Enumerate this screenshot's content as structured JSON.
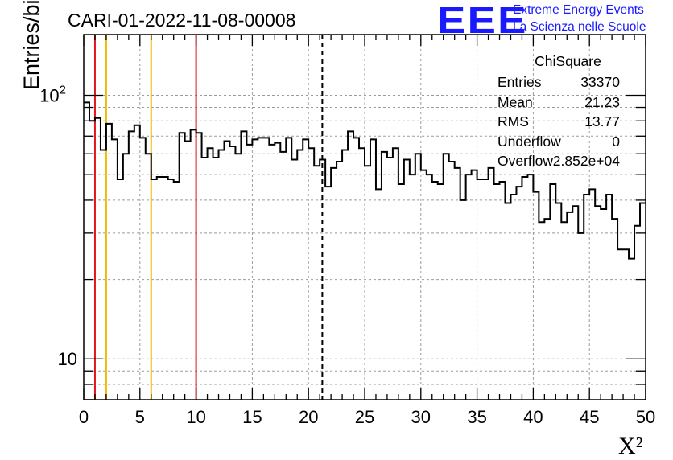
{
  "title": "CARI-01-2022-11-08-00008",
  "logo": {
    "mark": "EEE",
    "line1": "Extreme Energy Events",
    "line2": "La Scienza nelle Scuole",
    "color": "#1a1aff"
  },
  "stats_box": {
    "name": "ChiSquare",
    "entries_label": "Entries",
    "entries_value": "33370",
    "mean_label": "Mean",
    "mean_value": "21.23",
    "rms_label": "RMS",
    "rms_value": "13.77",
    "underflow_label": "Underflow",
    "underflow_value": "0",
    "overflow_label": "Overflow",
    "overflow_value": "2.852e+04"
  },
  "chart_data": {
    "type": "histogram",
    "title": "CARI-01-2022-11-08-00008",
    "xlabel": "X²",
    "ylabel": "Entries/bin",
    "xlim": [
      0,
      50
    ],
    "ylim": [
      7,
      170
    ],
    "yscale": "log",
    "grid": true,
    "bin_width": 0.5,
    "x_ticks": [
      "0",
      "5",
      "10",
      "15",
      "20",
      "25",
      "30",
      "35",
      "40",
      "45",
      "50"
    ],
    "y_ticks": [
      {
        "value": 10,
        "label": "10"
      },
      {
        "value": 100,
        "label": "10",
        "exp": "2"
      }
    ],
    "values": [
      94,
      80,
      82,
      62,
      78,
      68,
      48,
      60,
      73,
      77,
      69,
      60,
      48,
      49,
      49,
      48,
      47,
      72,
      67,
      74,
      72,
      58,
      63,
      58,
      62,
      67,
      64,
      60,
      73,
      65,
      68,
      69,
      69,
      65,
      66,
      61,
      69,
      57,
      62,
      68,
      63,
      54,
      57,
      45,
      53,
      56,
      62,
      73,
      69,
      63,
      54,
      68,
      44,
      61,
      58,
      63,
      46,
      57,
      50,
      60,
      52,
      50,
      47,
      46,
      60,
      56,
      53,
      40,
      50,
      52,
      48,
      48,
      53,
      46,
      47,
      39,
      42,
      45,
      49,
      50,
      43,
      33,
      34,
      46,
      39,
      33,
      36,
      38,
      30,
      42,
      44,
      38,
      37,
      42,
      34,
      26,
      26,
      24,
      32,
      39
    ],
    "vertical_lines": [
      {
        "x": 1,
        "color": "#e0161c",
        "style": "solid"
      },
      {
        "x": 2,
        "color": "#f3bb00",
        "style": "solid"
      },
      {
        "x": 6,
        "color": "#f3bb00",
        "style": "solid"
      },
      {
        "x": 10,
        "color": "#e0161c",
        "style": "solid"
      },
      {
        "x": 21.23,
        "color": "#000000",
        "style": "dashed"
      }
    ],
    "colors": {
      "line": "#000000",
      "grid": "#9b9b9b"
    }
  }
}
